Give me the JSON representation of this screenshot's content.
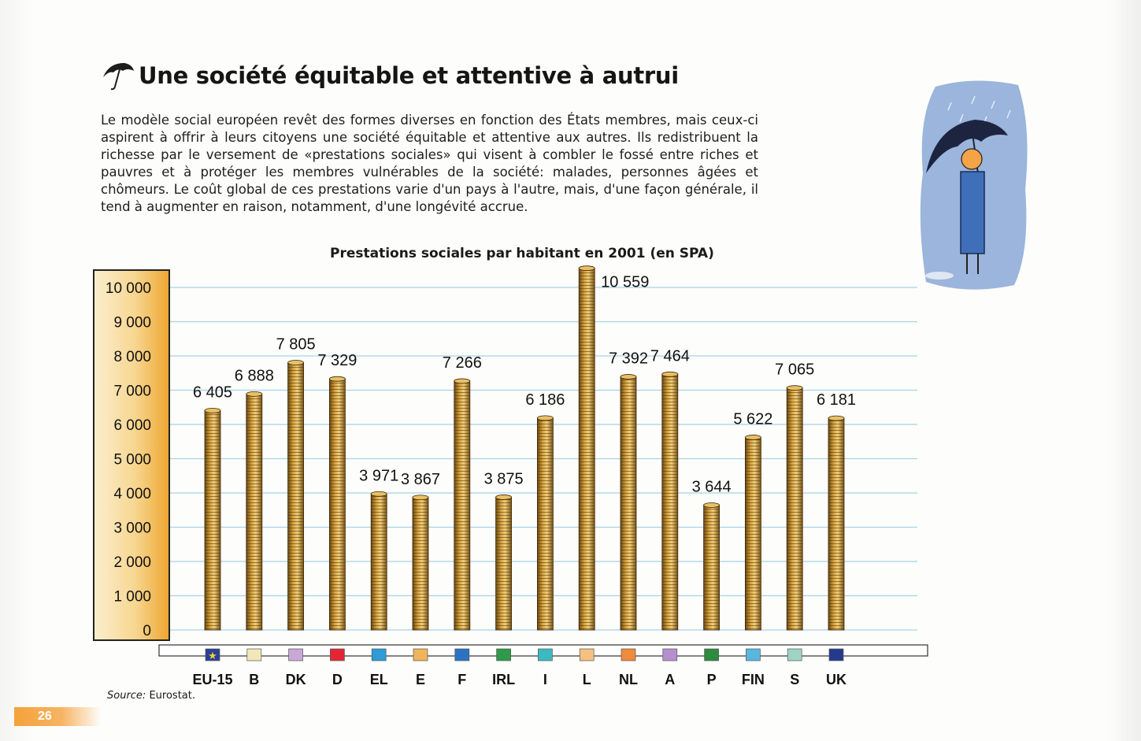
{
  "page": {
    "title": "Une société équitable et attentive à autrui",
    "intro": "Le modèle social européen revêt des formes diverses en fonction des États membres, mais ceux-ci aspirent à offrir à leurs citoyens une société équitable et attentive aux autres. Ils redistribuent la richesse par le versement de «prestations sociales» qui visent à combler le fossé entre riches et pauvres et à protéger les membres vulnérables de la société: malades, personnes âgées et chômeurs. Le coût global de ces prestations varie d'un pays à l'autre, mais, d'une façon générale, il tend à augmenter en raison, notamment, d'une longévité accrue.",
    "source_label": "Source:",
    "source_value": "Eurostat.",
    "page_number": "26"
  },
  "chart_data": {
    "type": "bar",
    "title": "Prestations sociales par habitant en 2001 (en SPA)",
    "categories": [
      "EU-15",
      "B",
      "DK",
      "D",
      "EL",
      "E",
      "F",
      "IRL",
      "I",
      "L",
      "NL",
      "A",
      "P",
      "FIN",
      "S",
      "UK"
    ],
    "values": [
      6405,
      6888,
      7805,
      7329,
      3971,
      3867,
      7266,
      3875,
      6186,
      10559,
      7392,
      7464,
      3644,
      5622,
      7065,
      6181
    ],
    "value_labels": [
      "6 405",
      "6 888",
      "7 805",
      "7 329",
      "3 971",
      "3 867",
      "7 266",
      "3 875",
      "6 186",
      "10 559",
      "7 392",
      "7 464",
      "3 644",
      "5 622",
      "7 065",
      "6 181"
    ],
    "flag_colors": [
      "#2b3f96",
      "#f2e7b8",
      "#c9a8d8",
      "#e32636",
      "#2e9cd6",
      "#f0b45a",
      "#2a73c4",
      "#2e9a4a",
      "#3db9c2",
      "#f5c080",
      "#f08a3c",
      "#b590cf",
      "#2e8b3e",
      "#5ab6e0",
      "#9fd4c4",
      "#253a8c"
    ],
    "yticks": [
      0,
      1000,
      2000,
      3000,
      4000,
      5000,
      6000,
      7000,
      8000,
      9000,
      10000
    ],
    "ytick_labels": [
      "0",
      "1 000",
      "2 000",
      "3 000",
      "4 000",
      "5 000",
      "6 000",
      "7 000",
      "8 000",
      "9 000",
      "10 000"
    ],
    "ylim": [
      0,
      10000
    ],
    "grid": true,
    "legend": "none"
  }
}
